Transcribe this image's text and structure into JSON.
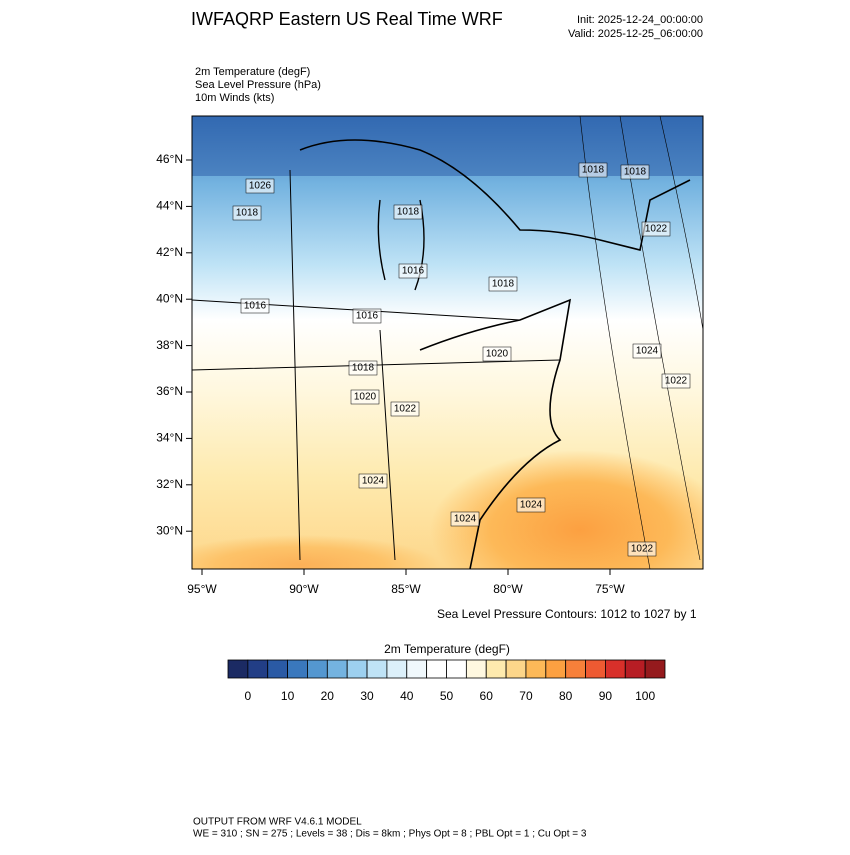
{
  "header": {
    "title": "IWFAQRP Eastern US Real Time WRF",
    "init": "Init: 2025-12-24_00:00:00",
    "valid": "Valid: 2025-12-25_06:00:00"
  },
  "fields": [
    "2m Temperature   (degF)",
    "Sea Level Pressure   (hPa)",
    "10m Winds   (kts)"
  ],
  "map": {
    "lat_labels": [
      "46°N",
      "44°N",
      "42°N",
      "40°N",
      "38°N",
      "36°N",
      "34°N",
      "32°N",
      "30°N"
    ],
    "lon_labels": [
      "95°W",
      "90°W",
      "85°W",
      "80°W",
      "75°W"
    ],
    "contour_labels": [
      "1026",
      "1018",
      "1018",
      "1016",
      "1018",
      "1016",
      "1016",
      "1020",
      "1018",
      "1020",
      "1022",
      "1024",
      "1022",
      "1022",
      "1018",
      "1018",
      "1024",
      "1024",
      "1024",
      "1022"
    ],
    "contour_note": "Sea Level Pressure Contours: 1012 to 1027 by 1"
  },
  "colorbar": {
    "title": "2m Temperature  (degF)",
    "labels": [
      "0",
      "10",
      "20",
      "30",
      "40",
      "50",
      "60",
      "70",
      "80",
      "90",
      "100"
    ],
    "colors": [
      "#1b2a63",
      "#223e86",
      "#2a5aa5",
      "#3a78bd",
      "#5497d0",
      "#74b3e0",
      "#9dd0ef",
      "#bfe3f6",
      "#dcf0fa",
      "#f0f8fc",
      "#ffffff",
      "#ffffff",
      "#fff8e0",
      "#feeaae",
      "#fdd68a",
      "#fdb958",
      "#fca041",
      "#f7803a",
      "#ee5a32",
      "#d8302a",
      "#b71d24",
      "#951a1d"
    ]
  },
  "footer": {
    "line1": "OUTPUT FROM WRF V4.6.1 MODEL",
    "line2": "WE = 310 ; SN = 275 ; Levels = 38 ; Dis = 8km ; Phys Opt = 8 ; PBL Opt = 1 ; Cu Opt = 3"
  }
}
